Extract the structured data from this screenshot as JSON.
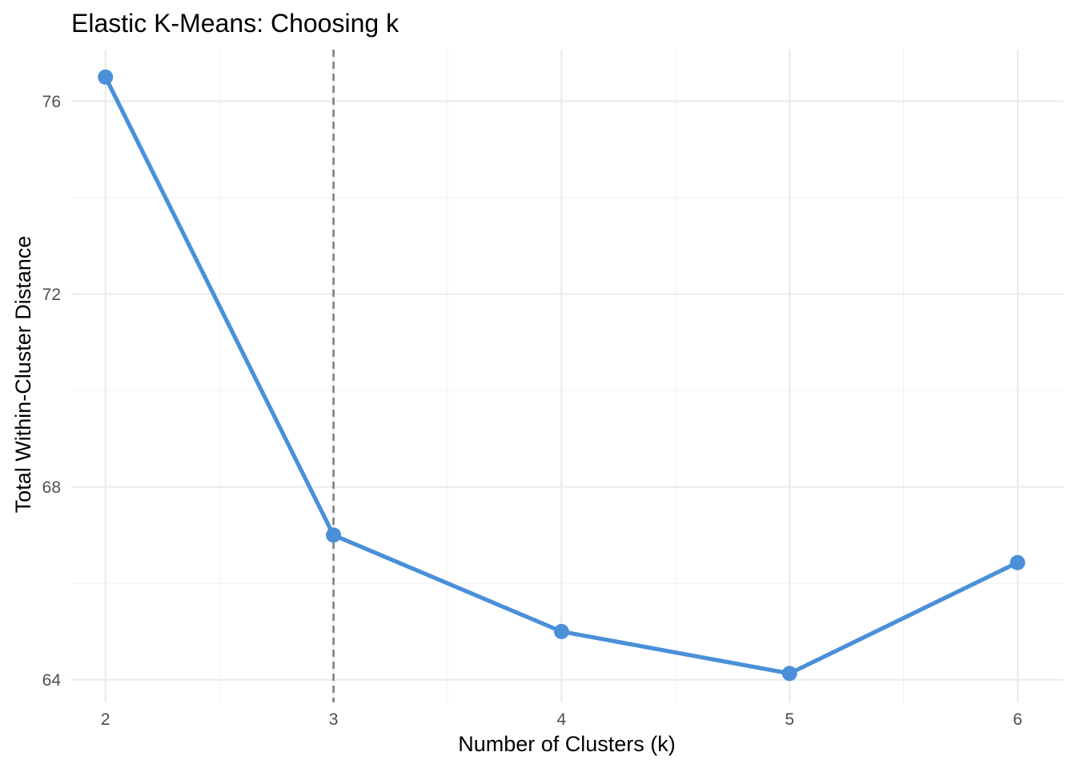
{
  "chart_data": {
    "type": "line",
    "title": "Elastic K-Means: Choosing k",
    "xlabel": "Number of Clusters (k)",
    "ylabel": "Total Within-Cluster Distance",
    "x": [
      2,
      3,
      4,
      5,
      6
    ],
    "x_ticks": [
      "2",
      "3",
      "4",
      "5",
      "6"
    ],
    "series": [
      {
        "values": [
          76.5,
          67.0,
          65.0,
          64.13,
          66.43
        ],
        "color": "#4A90D9"
      }
    ],
    "y_ticks": [
      64,
      68,
      72,
      76
    ],
    "y_tick_labels": [
      "64",
      "68",
      "72",
      "76"
    ],
    "xlim": [
      1.85,
      6.2
    ],
    "ylim": [
      63.53,
      77.07
    ],
    "reference_line": {
      "x": 3,
      "style": "dashed",
      "color": "#808080"
    },
    "grid": true,
    "legend": "none"
  }
}
